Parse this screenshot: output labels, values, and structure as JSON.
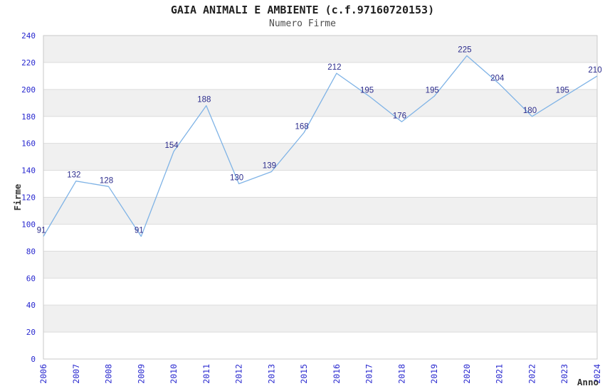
{
  "chart_data": {
    "type": "line",
    "title": "GAIA ANIMALI E AMBIENTE (c.f.97160720153)",
    "subtitle": "Numero Firme",
    "xlabel": "Anno",
    "ylabel": "Firme",
    "categories": [
      "2006",
      "2007",
      "2008",
      "2009",
      "2010",
      "2011",
      "2012",
      "2013",
      "2015",
      "2016",
      "2017",
      "2018",
      "2019",
      "2020",
      "2021",
      "2022",
      "2023",
      "2024"
    ],
    "values": [
      91,
      132,
      128,
      91,
      154,
      188,
      130,
      139,
      168,
      212,
      195,
      176,
      195,
      225,
      204,
      180,
      195,
      210
    ],
    "ylim": [
      0,
      240
    ],
    "ytick_step": 20,
    "yticks": [
      0,
      20,
      40,
      60,
      80,
      100,
      120,
      140,
      160,
      180,
      200,
      220,
      240
    ],
    "grid": true,
    "legend": false,
    "banded_background": true,
    "colors": {
      "line": "#7fb3e6",
      "point_label": "#2b2b8c",
      "tick_label": "#2828cf",
      "band_fill": "#f0f0f0",
      "grid_line": "#dcdcdc",
      "plot_border": "#c9c9c9",
      "title": "#1f1f1f",
      "subtitle": "#4d4d4d",
      "axis_title": "#333333",
      "background": "#ffffff"
    }
  }
}
